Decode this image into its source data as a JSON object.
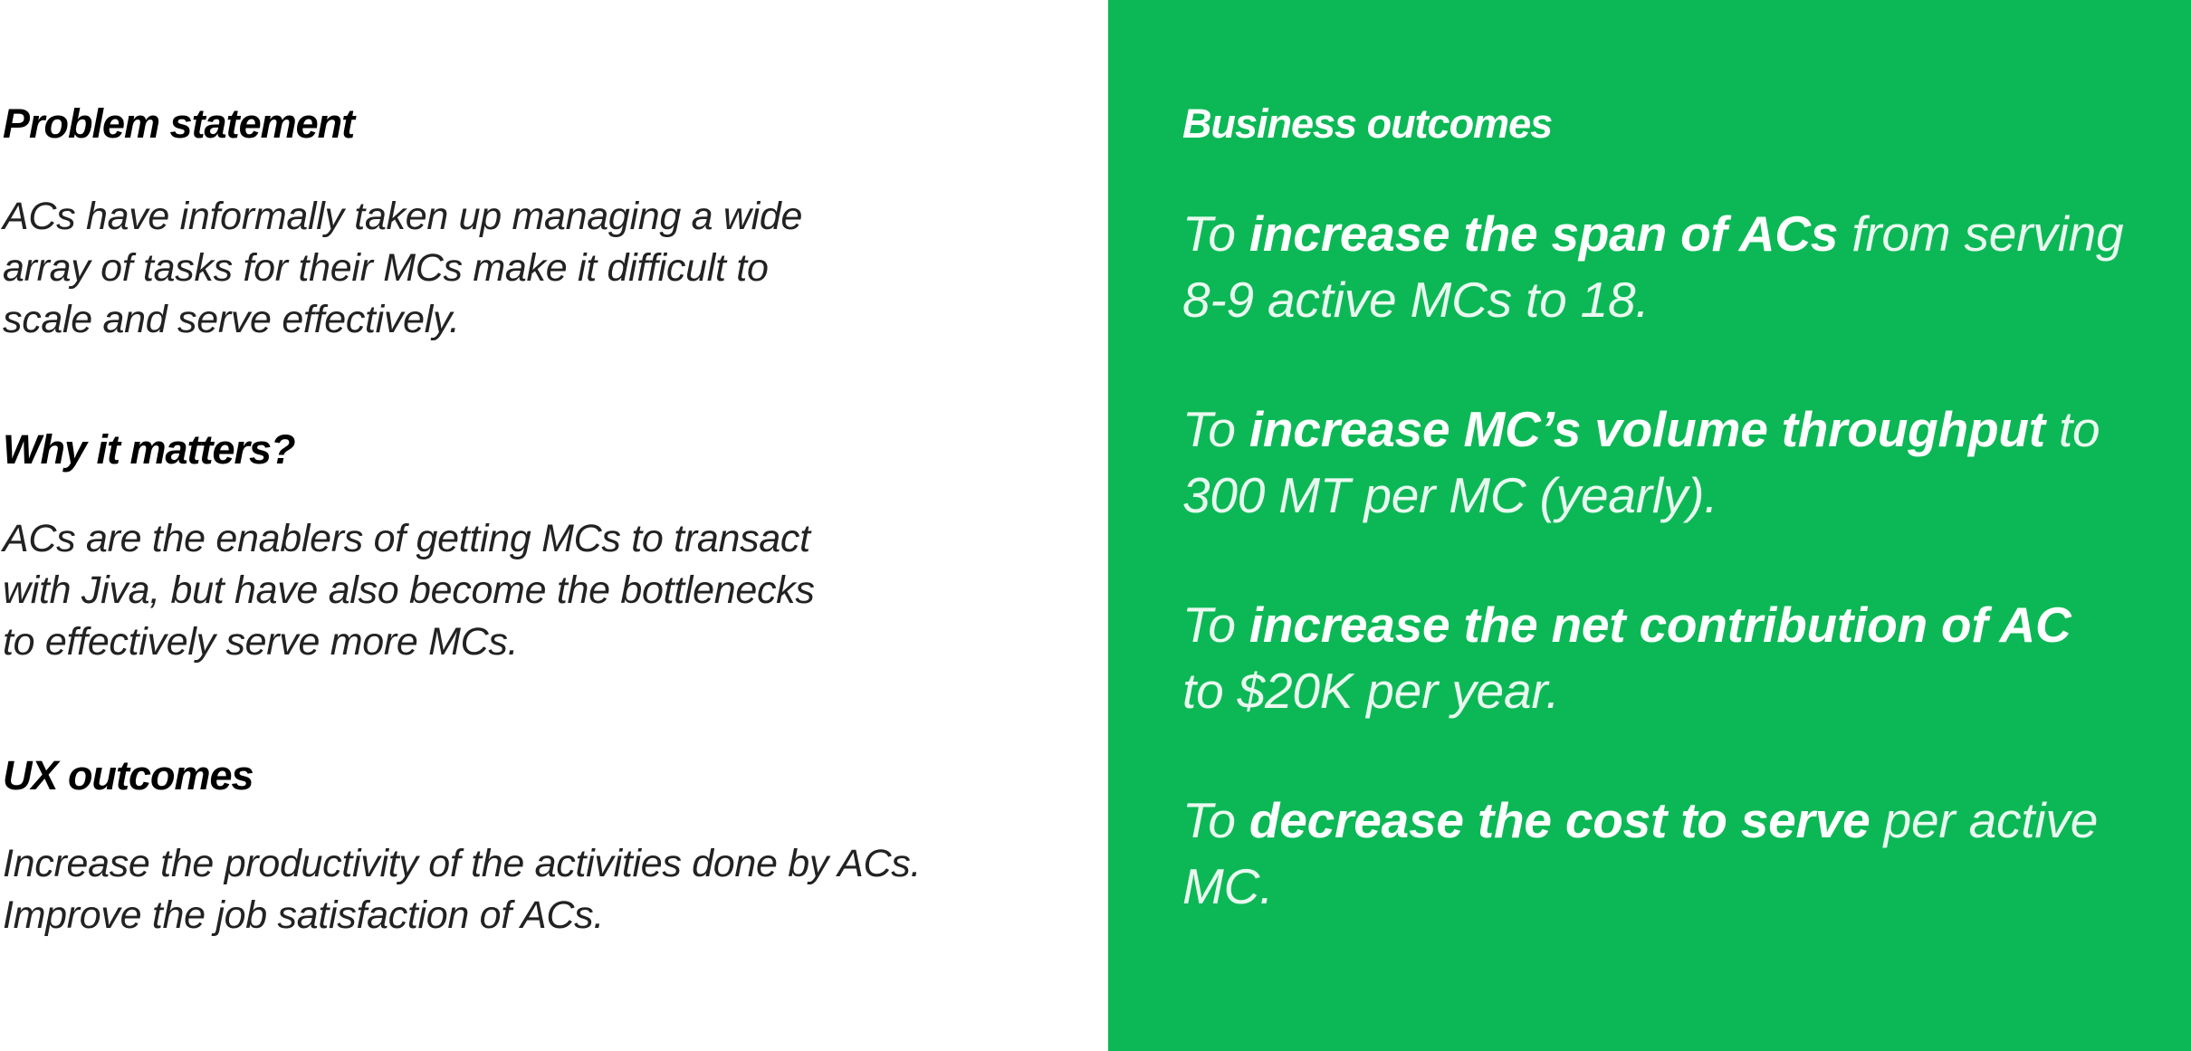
{
  "left": {
    "problem": {
      "heading": "Problem statement",
      "lines": [
        "ACs have informally taken up managing a wide",
        "array of tasks for their MCs make it difficult to",
        "scale and serve effectively."
      ]
    },
    "why": {
      "heading": "Why it matters?",
      "lines": [
        "ACs are the enablers of getting MCs to transact",
        "with Jiva, but have also become the bottlenecks",
        "to effectively serve more MCs."
      ]
    },
    "ux": {
      "heading": "UX outcomes",
      "lines": [
        "Increase the productivity of the activities done by ACs.",
        "Improve the job satisfaction of ACs."
      ]
    }
  },
  "right": {
    "heading": "Business outcomes",
    "outcomes": [
      {
        "pre": "To ",
        "bold": "increase the span of ACs",
        "post1": " from serving",
        "line2": "8-9 active MCs to 18."
      },
      {
        "pre": "To ",
        "bold": "increase MC’s volume throughput",
        "post1": " to",
        "line2": "300 MT per MC (yearly)."
      },
      {
        "pre": "To ",
        "bold": "increase the net contribution of AC",
        "post1": "",
        "line2": "to $20K per year."
      },
      {
        "pre": "To ",
        "bold": "decrease the cost to serve",
        "post1": " per active",
        "line2": "MC."
      }
    ]
  },
  "colors": {
    "panel_green": "#0cb856",
    "heading_black": "#000000",
    "body_gray": "#222222",
    "white": "#ffffff"
  }
}
